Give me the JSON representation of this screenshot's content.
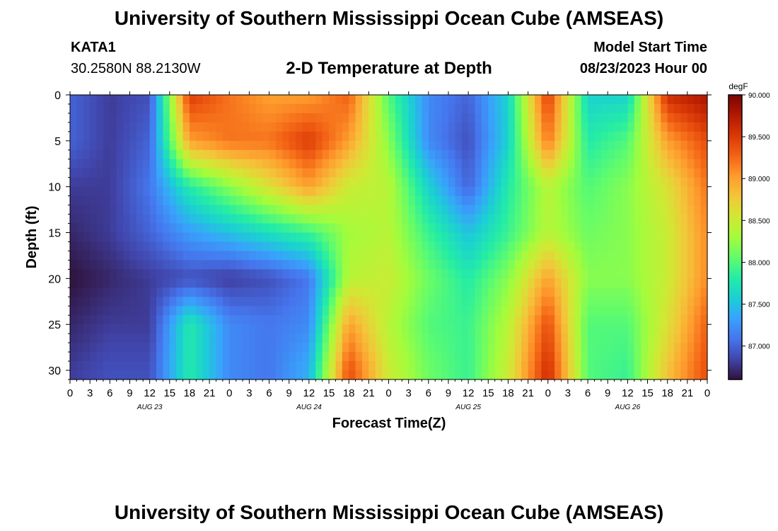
{
  "header": {
    "title": "University of Southern Mississippi Ocean Cube (AMSEAS)",
    "station": "KATA1",
    "coords": "30.2580N  88.2130W",
    "subtitle": "2-D Temperature at Depth",
    "model_start_label": "Model Start Time",
    "model_start_value": "08/23/2023 Hour 00"
  },
  "footer": {
    "title": "University of Southern Mississippi Ocean Cube (AMSEAS)"
  },
  "chart_data": {
    "type": "heatmap",
    "title": "2-D Temperature at Depth",
    "xlabel": "Forecast Time(Z)",
    "ylabel": "Depth (ft)",
    "x_range_hours": [
      0,
      96
    ],
    "y_range_ft": [
      0,
      31
    ],
    "y_inverted": true,
    "x_tick_labels": [
      "0",
      "3",
      "6",
      "9",
      "12",
      "15",
      "18",
      "21",
      "0",
      "3",
      "6",
      "9",
      "12",
      "15",
      "18",
      "21",
      "0",
      "3",
      "6",
      "9",
      "12",
      "15",
      "18",
      "21",
      "0",
      "3",
      "6",
      "9",
      "12",
      "15",
      "18",
      "21",
      "0"
    ],
    "y_ticks": [
      0,
      5,
      10,
      15,
      20,
      25,
      30
    ],
    "day_labels": [
      {
        "label": "AUG 23",
        "hour": 12
      },
      {
        "label": "AUG 24",
        "hour": 36
      },
      {
        "label": "AUG 25",
        "hour": 60
      },
      {
        "label": "AUG 26",
        "hour": 84
      }
    ],
    "colorbar": {
      "unit": "degF",
      "min": 86.6,
      "max": 90.0,
      "ticks": [
        "87.000",
        "87.500",
        "88.000",
        "88.500",
        "89.000",
        "89.500",
        "90.000"
      ],
      "colors": [
        "#30123b",
        "#4145ab",
        "#4675ed",
        "#39a2fc",
        "#1bcfd4",
        "#24eca6",
        "#61fc6c",
        "#a4fc3b",
        "#d1e834",
        "#f3c63a",
        "#fe9b2d",
        "#f36315",
        "#d93806",
        "#b11901",
        "#7a0403"
      ]
    },
    "approx_profiles_degF": {
      "note": "approximate values read from colors; depth rows at 0, 5, 10, 15, 20, 25, 30 ft",
      "hours": [
        0,
        6,
        12,
        18,
        24,
        30,
        36,
        42,
        48,
        54,
        60,
        66,
        72,
        78,
        84,
        90,
        96
      ],
      "rows": [
        [
          87.0,
          86.8,
          86.9,
          89.5,
          89.2,
          89.0,
          89.0,
          89.3,
          88.0,
          87.2,
          87.0,
          87.6,
          89.5,
          87.6,
          87.6,
          89.6,
          89.8
        ],
        [
          87.0,
          86.8,
          87.0,
          89.0,
          89.2,
          89.2,
          89.5,
          89.0,
          88.2,
          87.2,
          86.9,
          87.6,
          89.2,
          87.8,
          88.0,
          89.0,
          89.4
        ],
        [
          86.8,
          86.8,
          87.1,
          87.8,
          88.2,
          88.6,
          89.0,
          88.5,
          88.4,
          87.6,
          87.0,
          87.8,
          88.4,
          88.0,
          88.2,
          88.6,
          89.2
        ],
        [
          86.7,
          86.8,
          87.0,
          87.3,
          87.5,
          87.7,
          87.9,
          88.3,
          88.4,
          87.9,
          87.5,
          87.9,
          88.4,
          88.1,
          88.2,
          88.5,
          89.1
        ],
        [
          86.6,
          86.7,
          86.8,
          86.9,
          86.8,
          86.9,
          87.1,
          88.4,
          88.5,
          88.1,
          87.8,
          88.2,
          89.0,
          88.2,
          88.2,
          88.5,
          89.1
        ],
        [
          86.7,
          86.8,
          86.8,
          87.8,
          87.2,
          87.1,
          87.2,
          89.0,
          88.4,
          88.0,
          87.9,
          88.4,
          89.4,
          88.0,
          88.0,
          88.6,
          89.3
        ],
        [
          86.8,
          86.9,
          86.9,
          87.8,
          87.2,
          87.1,
          87.4,
          89.4,
          88.5,
          88.1,
          87.9,
          88.5,
          89.6,
          88.0,
          87.9,
          88.8,
          89.4
        ]
      ]
    }
  }
}
